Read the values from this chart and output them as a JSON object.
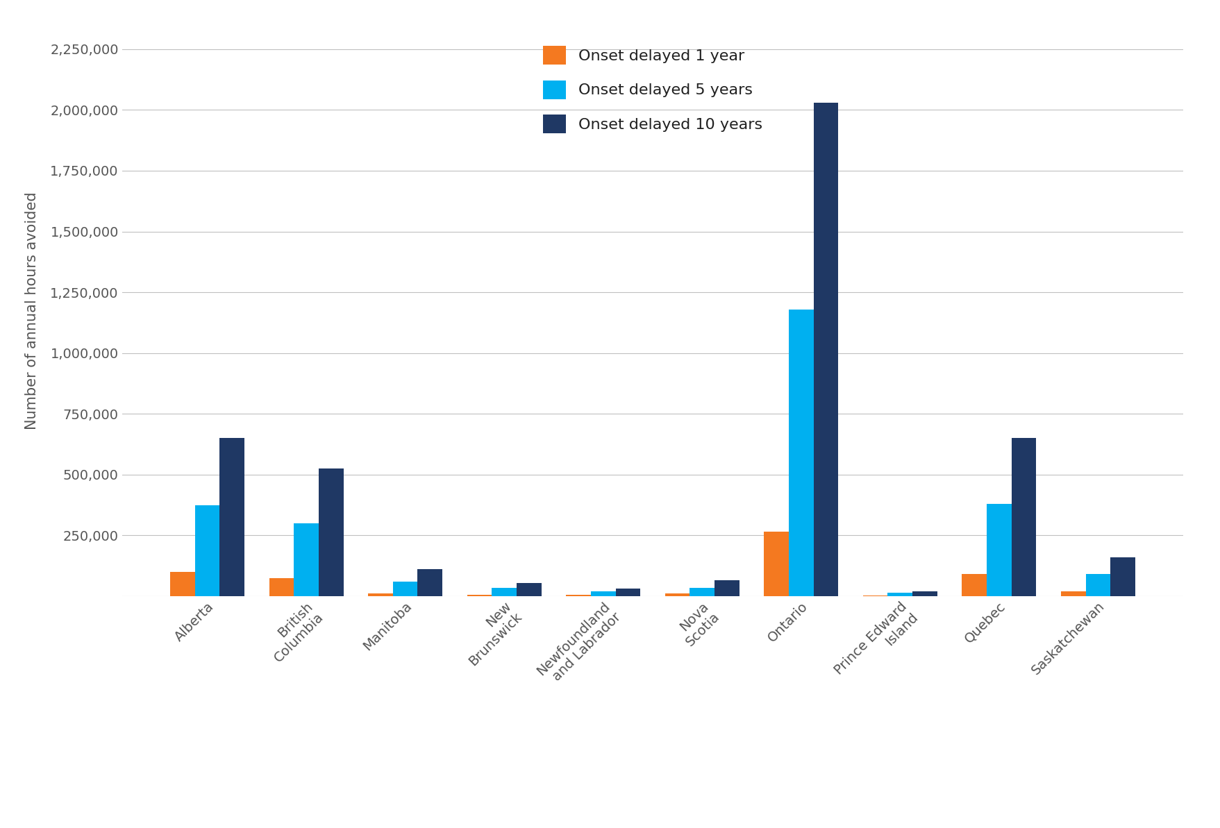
{
  "categories": [
    "Alberta",
    "British\nColumbia",
    "Manitoba",
    "New\nBrunswick",
    "Newfoundland\nand Labrador",
    "Nova\nScotia",
    "Ontario",
    "Prince Edward\nIsland",
    "Quebec",
    "Saskatchewan"
  ],
  "onset_1yr": [
    100000,
    75000,
    10000,
    5000,
    5000,
    10000,
    265000,
    2000,
    90000,
    20000
  ],
  "onset_5yr": [
    375000,
    300000,
    60000,
    35000,
    20000,
    35000,
    1180000,
    15000,
    380000,
    90000
  ],
  "onset_10yr": [
    650000,
    525000,
    110000,
    55000,
    30000,
    65000,
    2030000,
    20000,
    650000,
    160000
  ],
  "color_1yr": "#f47920",
  "color_5yr": "#00b0f0",
  "color_10yr": "#1f3864",
  "ylabel": "Number of annual hours avoided",
  "ylim": [
    0,
    2350000
  ],
  "yticks": [
    0,
    250000,
    500000,
    750000,
    1000000,
    1250000,
    1500000,
    1750000,
    2000000,
    2250000
  ],
  "ytick_labels": [
    "",
    "250,000",
    "500,000",
    "750,000",
    "1,000,000",
    "1,250,000",
    "1,500,000",
    "1,750,000",
    "2,000,000",
    "2,250,000"
  ],
  "legend_labels": [
    "Onset delayed 1 year",
    "Onset delayed 5 years",
    "Onset delayed 10 years"
  ],
  "bar_width": 0.25,
  "background_color": "#ffffff",
  "grid_color": "#c0c0c0"
}
